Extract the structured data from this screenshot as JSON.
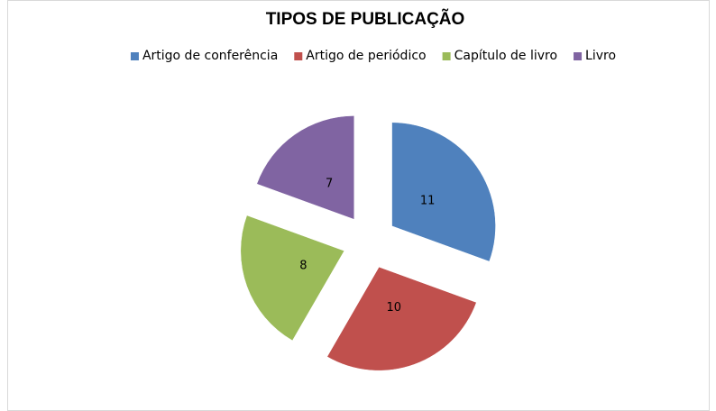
{
  "chart_data": {
    "type": "pie",
    "title": "TIPOS DE PUBLICAÇÃO",
    "categories": [
      "Artigo de conferência",
      "Artigo de periódico",
      "Capítulo de livro",
      "Livro"
    ],
    "values": [
      11,
      10,
      8,
      7
    ],
    "colors": [
      "#4f81bd",
      "#c0504d",
      "#9bbb59",
      "#8064a2"
    ],
    "exploded": true,
    "legend": "top"
  }
}
